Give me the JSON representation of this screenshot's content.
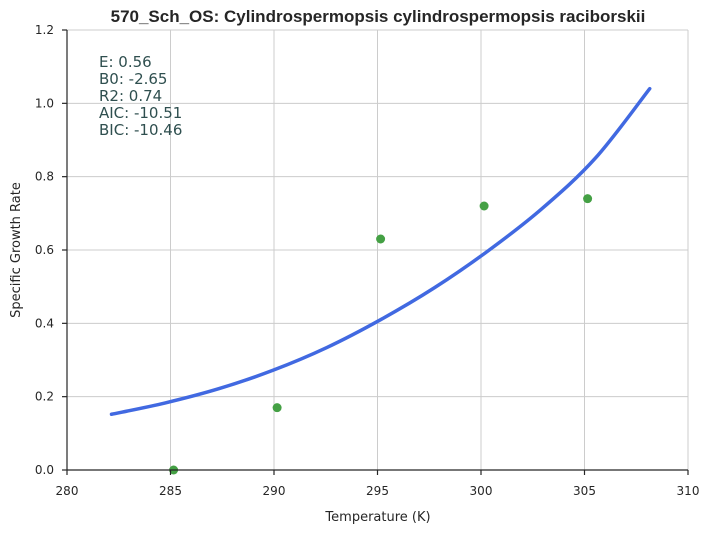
{
  "chart_data": {
    "type": "scatter",
    "title": "570_Sch_OS: Cylindrospermopsis cylindrospermopsis raciborskii",
    "xlabel": "Temperature (K)",
    "ylabel": "Specific Growth Rate",
    "xlim": [
      280,
      310
    ],
    "ylim": [
      0.0,
      1.2
    ],
    "x_ticks": [
      "280",
      "285",
      "290",
      "295",
      "300",
      "305",
      "310"
    ],
    "y_ticks": [
      "0.0",
      "0.2",
      "0.4",
      "0.6",
      "0.8",
      "1.0",
      "1.2"
    ],
    "grid": true,
    "series": [
      {
        "kind": "points",
        "color": "#44a044",
        "x": [
          285.15,
          290.15,
          295.15,
          300.15,
          305.15
        ],
        "y": [
          0.0,
          0.17,
          0.63,
          0.72,
          0.74
        ]
      },
      {
        "kind": "fitted-curve",
        "color": "#4169e1",
        "x": [
          282.15,
          284.75,
          287.35,
          289.95,
          292.55,
          295.15,
          297.75,
          300.35,
          302.95,
          305.55,
          308.15
        ],
        "y": [
          0.152,
          0.183,
          0.222,
          0.272,
          0.334,
          0.41,
          0.497,
          0.598,
          0.713,
          0.852,
          1.04
        ]
      }
    ],
    "annotations": [
      "E:  0.56",
      "B0:  -2.65",
      "R2:  0.74",
      "AIC: -10.51",
      "BIC: -10.46"
    ]
  }
}
